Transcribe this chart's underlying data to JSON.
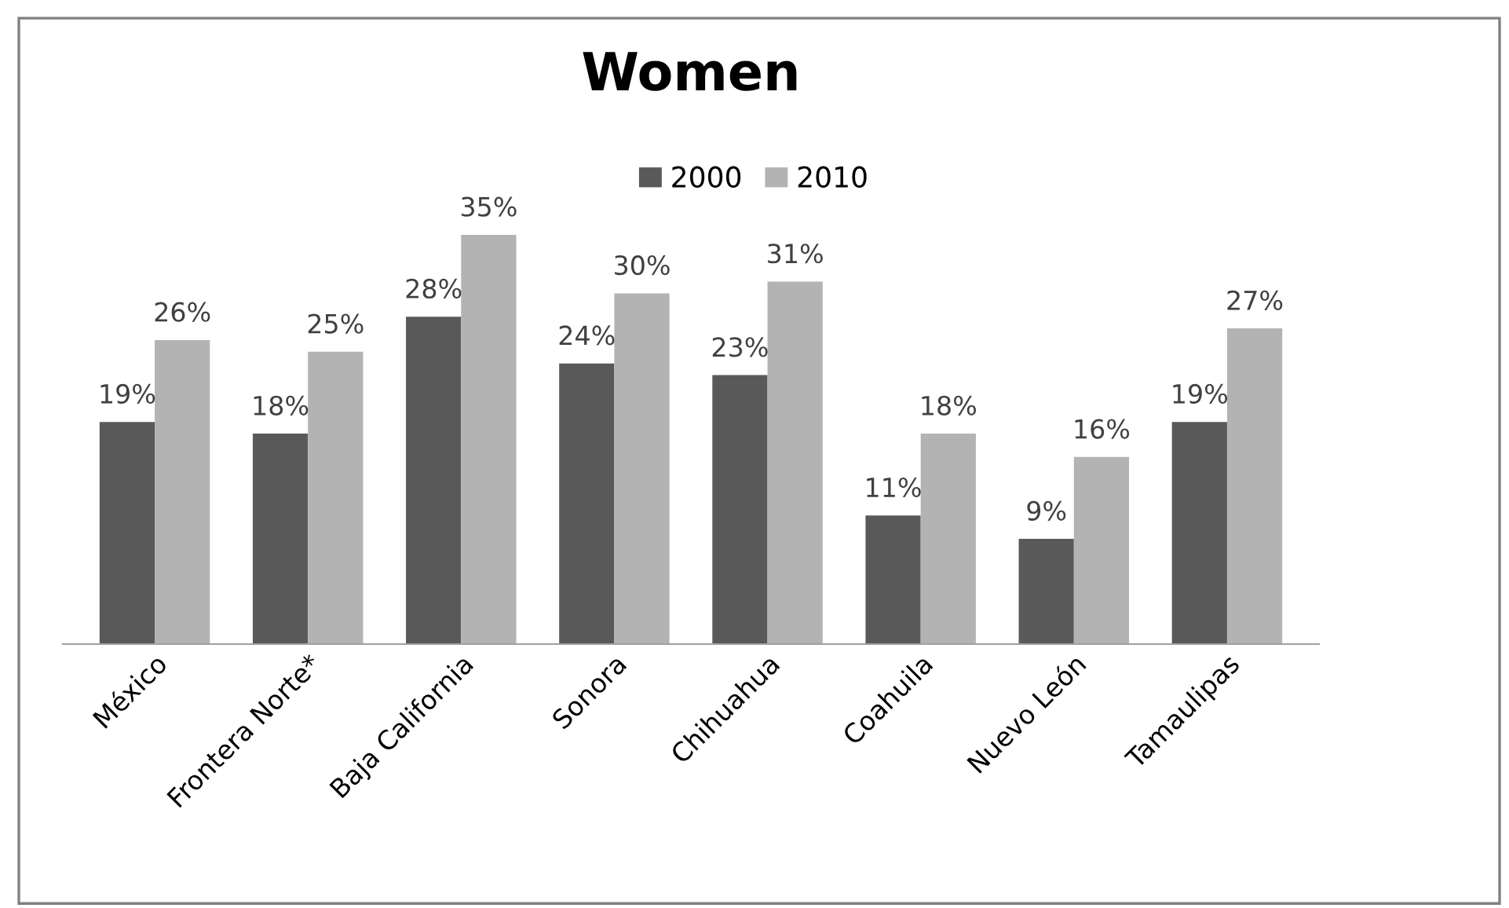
{
  "chart_data": {
    "type": "bar",
    "title": "Women",
    "categories": [
      "México",
      "Frontera Norte*",
      "Baja California",
      "Sonora",
      "Chihuahua",
      "Coahuila",
      "Nuevo León",
      "Tamaulipas"
    ],
    "series": [
      {
        "name": "2000",
        "color": "#595959",
        "values": [
          19,
          18,
          28,
          24,
          23,
          11,
          9,
          19
        ],
        "value_labels": [
          "19%",
          "18%",
          "28%",
          "24%",
          "23%",
          "11%",
          "9%",
          "19%"
        ]
      },
      {
        "name": "2010",
        "color": "#b3b3b3",
        "values": [
          26,
          25,
          35,
          30,
          31,
          18,
          16,
          27
        ],
        "value_labels": [
          "26%",
          "25%",
          "35%",
          "30%",
          "31%",
          "18%",
          "16%",
          "27%"
        ]
      }
    ],
    "tick_labels": "x",
    "grid": false,
    "legend": "top"
  }
}
